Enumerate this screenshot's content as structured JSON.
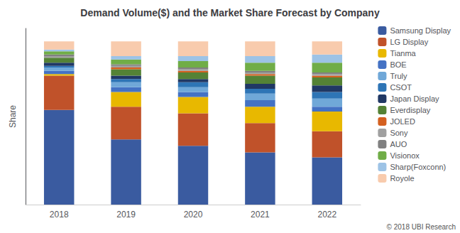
{
  "chart_data": {
    "type": "bar",
    "title": "Demand Volume($) and the Market Share Forecast by Company",
    "ylabel": "Share",
    "annotation": "© 2018 UBI Research",
    "stacked": true,
    "legend": "right",
    "tick_labels": "x",
    "grid": false,
    "ylim": [
      0,
      1.08
    ],
    "yticks": [],
    "categories": [
      "2018",
      "2019",
      "2020",
      "2021",
      "2022"
    ],
    "series": [
      {
        "name": "Samsung Display",
        "color": "#3A5BA0",
        "values": [
          0.58,
          0.4,
          0.36,
          0.32,
          0.29
        ]
      },
      {
        "name": "LG Display",
        "color": "#C0522A",
        "values": [
          0.21,
          0.2,
          0.2,
          0.18,
          0.16
        ]
      },
      {
        "name": "Tianma",
        "color": "#E8B800",
        "values": [
          0.01,
          0.09,
          0.1,
          0.1,
          0.12
        ]
      },
      {
        "name": "BOE",
        "color": "#4472C4",
        "values": [
          0.02,
          0.03,
          0.03,
          0.04,
          0.03
        ]
      },
      {
        "name": "Truly",
        "color": "#70A8D8",
        "values": [
          0.02,
          0.03,
          0.03,
          0.04,
          0.05
        ]
      },
      {
        "name": "CSOT",
        "color": "#2E75B6",
        "values": [
          0.01,
          0.02,
          0.03,
          0.03,
          0.04
        ]
      },
      {
        "name": "Japan Display",
        "color": "#203864",
        "values": [
          0.02,
          0.02,
          0.02,
          0.03,
          0.04
        ]
      },
      {
        "name": "Everdisplay",
        "color": "#548235",
        "values": [
          0.03,
          0.04,
          0.04,
          0.05,
          0.05
        ]
      },
      {
        "name": "JOLED",
        "color": "#D46020",
        "values": [
          0.0,
          0.01,
          0.01,
          0.01,
          0.01
        ]
      },
      {
        "name": "Sony",
        "color": "#A0A0A0",
        "values": [
          0.01,
          0.01,
          0.01,
          0.01,
          0.01
        ]
      },
      {
        "name": "AUO",
        "color": "#808080",
        "values": [
          0.01,
          0.01,
          0.01,
          0.01,
          0.01
        ]
      },
      {
        "name": "Visionox",
        "color": "#70AD47",
        "values": [
          0.02,
          0.03,
          0.04,
          0.05,
          0.06
        ]
      },
      {
        "name": "Sharp(Foxconn)",
        "color": "#9DC3E6",
        "values": [
          0.01,
          0.02,
          0.03,
          0.04,
          0.05
        ]
      },
      {
        "name": "Royole",
        "color": "#F8CBAD",
        "values": [
          0.05,
          0.09,
          0.09,
          0.09,
          0.08
        ]
      }
    ]
  }
}
